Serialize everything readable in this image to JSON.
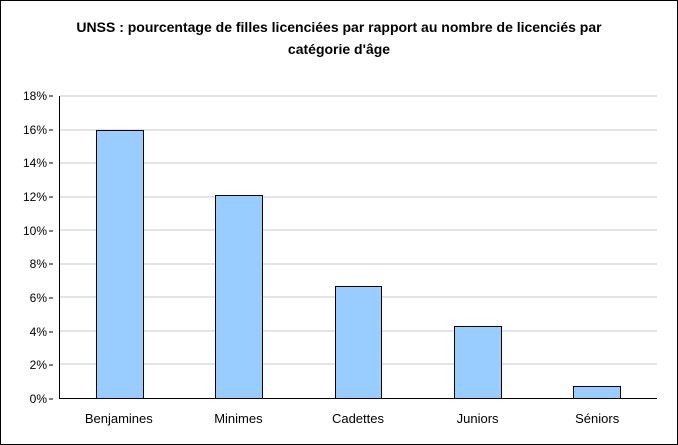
{
  "chart_data": {
    "type": "bar",
    "title": "UNSS : pourcentage de filles licenciées par rapport au nombre de licenciés par catégorie d'âge",
    "categories": [
      "Benjamines",
      "Minimes",
      "Cadettes",
      "Juniors",
      "Séniors"
    ],
    "values": [
      16,
      12.1,
      6.7,
      4.3,
      0.7
    ],
    "unit": "%",
    "ylim": [
      0,
      18
    ],
    "ytick_step": 2,
    "ytick_labels": [
      "0%",
      "2%",
      "4%",
      "6%",
      "8%",
      "10%",
      "12%",
      "14%",
      "16%",
      "18%"
    ],
    "xlabel": "",
    "ylabel": "",
    "grid": true,
    "legend": "none",
    "bar_color": "#99CCFF",
    "bar_border_color": "#000000",
    "gridline_color": "#C8C8C8",
    "axis_color": "#000000",
    "background_color": "#FFFFFF"
  }
}
